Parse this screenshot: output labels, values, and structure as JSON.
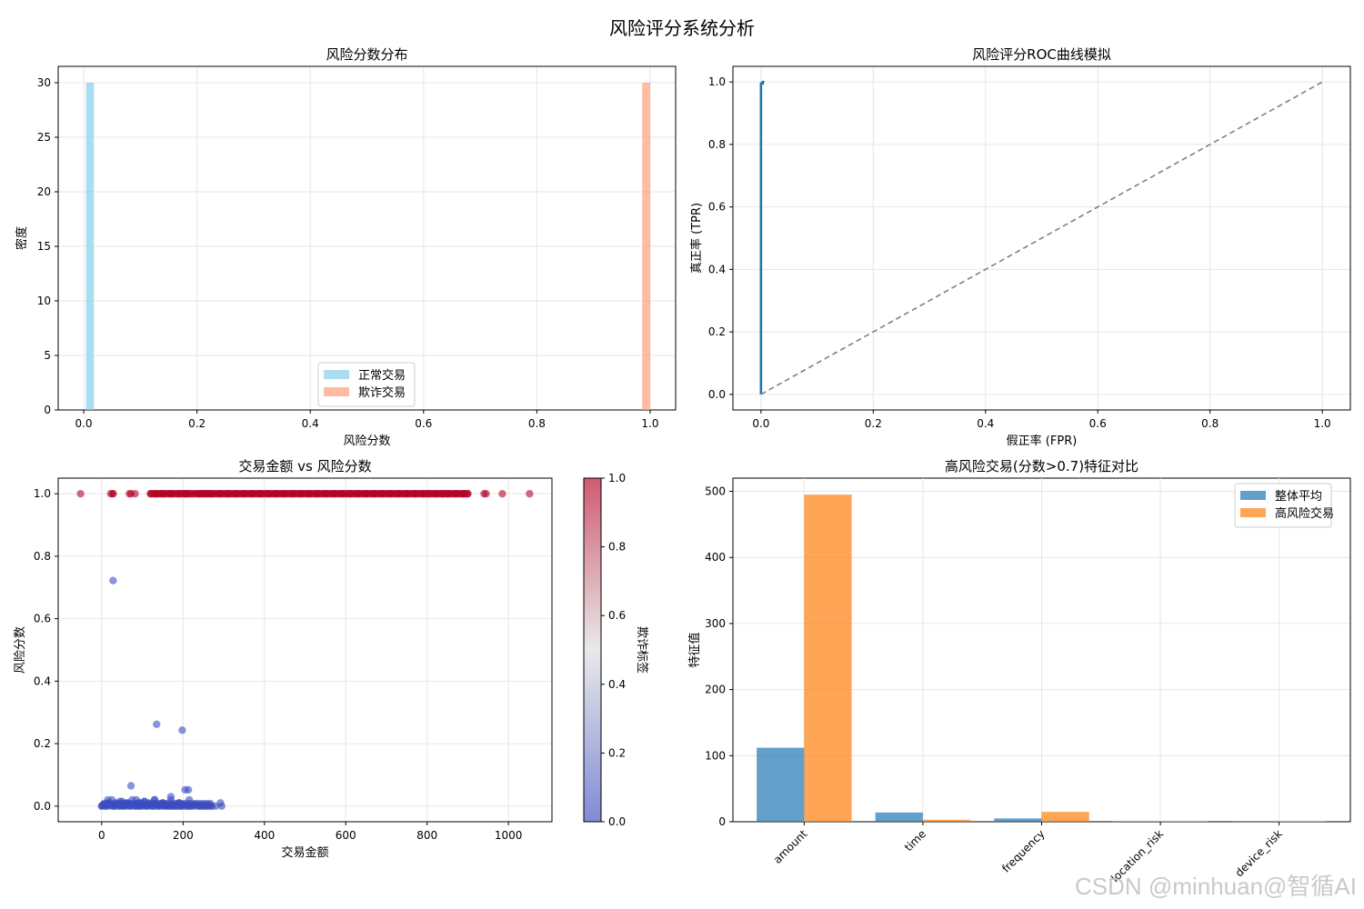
{
  "figure_title": "风险评分系统分析",
  "watermark": "CSDN @minhuan@智循AI",
  "colors": {
    "normal_hist": "#87CEEB",
    "fraud_hist": "#FFA07A",
    "roc_line": "#1f77b4",
    "diagonal": "#808080",
    "bar_overall": "#1f77b4",
    "bar_high_risk": "#ff7f0e",
    "cmap_low": "#3b4cc0",
    "cmap_mid": "#dddddd",
    "cmap_high": "#b40426",
    "grid": "#e6e6e6"
  },
  "chart_data": [
    {
      "id": "hist",
      "type": "bar",
      "title": "风险分数分布",
      "xlabel": "风险分数",
      "ylabel": "密度",
      "xlim": [
        -0.045,
        1.045
      ],
      "ylim": [
        0,
        31.5
      ],
      "xticks": [
        0.0,
        0.2,
        0.4,
        0.6,
        0.8,
        1.0
      ],
      "xtick_labels": [
        "0.0",
        "0.2",
        "0.4",
        "0.6",
        "0.8",
        "1.0"
      ],
      "yticks": [
        0,
        5,
        10,
        15,
        20,
        25,
        30
      ],
      "ytick_labels": [
        "0",
        "5",
        "10",
        "15",
        "20",
        "25",
        "30"
      ],
      "legend_position": "lower-center",
      "series": [
        {
          "name": "正常交易",
          "bins": [
            [
              0.004,
              0.018,
              30
            ]
          ]
        },
        {
          "name": "欺诈交易",
          "bins": [
            [
              0.986,
              1.0,
              30
            ]
          ]
        }
      ]
    },
    {
      "id": "roc",
      "type": "line",
      "title": "风险评分ROC曲线模拟",
      "xlabel": "假正率 (FPR)",
      "ylabel": "真正率 (TPR)",
      "xlim": [
        -0.05,
        1.05
      ],
      "ylim": [
        -0.05,
        1.05
      ],
      "xticks": [
        0.0,
        0.2,
        0.4,
        0.6,
        0.8,
        1.0
      ],
      "xtick_labels": [
        "0.0",
        "0.2",
        "0.4",
        "0.6",
        "0.8",
        "1.0"
      ],
      "yticks": [
        0.0,
        0.2,
        0.4,
        0.6,
        0.8,
        1.0
      ],
      "ytick_labels": [
        "0.0",
        "0.2",
        "0.4",
        "0.6",
        "0.8",
        "1.0"
      ],
      "series": [
        {
          "style": "solid",
          "x": [
            0.0,
            0.0,
            0.003,
            0.003,
            0.006
          ],
          "y": [
            0.0,
            0.995,
            0.995,
            1.0,
            1.0
          ]
        },
        {
          "style": "dashed",
          "x": [
            0.0,
            1.0
          ],
          "y": [
            0.0,
            1.0
          ]
        }
      ]
    },
    {
      "id": "scatter",
      "type": "scatter",
      "title": "交易金额 vs 风险分数",
      "xlabel": "交易金额",
      "ylabel": "风险分数",
      "xlim": [
        -107,
        1107
      ],
      "ylim": [
        -0.05,
        1.05
      ],
      "xticks": [
        0,
        200,
        400,
        600,
        800,
        1000
      ],
      "xtick_labels": [
        "0",
        "200",
        "400",
        "600",
        "800",
        "1000"
      ],
      "yticks": [
        0.0,
        0.2,
        0.4,
        0.6,
        0.8,
        1.0
      ],
      "ytick_labels": [
        "0.0",
        "0.2",
        "0.4",
        "0.6",
        "0.8",
        "1.0"
      ],
      "colorbar": {
        "label": "欺诈标签",
        "range": [
          0.0,
          1.0
        ],
        "ticks": [
          0.0,
          0.2,
          0.4,
          0.6,
          0.8,
          1.0
        ],
        "tick_labels": [
          "0.0",
          "0.2",
          "0.4",
          "0.6",
          "0.8",
          "1.0"
        ]
      },
      "fraud_points": {
        "label": 1.0,
        "x": [
          -52,
          22,
          27,
          28,
          68,
          72,
          82,
          120,
          135,
          150,
          170,
          190,
          205,
          210,
          240,
          250,
          260,
          270,
          290,
          310,
          330,
          350,
          370,
          390,
          410,
          430,
          450,
          470,
          490,
          510,
          530,
          550,
          570,
          590,
          610,
          630,
          650,
          670,
          690,
          710,
          730,
          750,
          770,
          790,
          805,
          820,
          838,
          850,
          870,
          890,
          900,
          940,
          945,
          985,
          1052
        ],
        "y": [
          1.0,
          1.0,
          1.0,
          1.0,
          1.0,
          1.0,
          1.0,
          1.0,
          1.0,
          1.0,
          1.0,
          1.0,
          1.0,
          1.0,
          1.0,
          1.0,
          1.0,
          1.0,
          1.0,
          1.0,
          1.0,
          1.0,
          1.0,
          1.0,
          1.0,
          1.0,
          1.0,
          1.0,
          1.0,
          1.0,
          1.0,
          1.0,
          1.0,
          1.0,
          1.0,
          1.0,
          1.0,
          1.0,
          1.0,
          1.0,
          1.0,
          1.0,
          1.0,
          1.0,
          1.0,
          1.0,
          1.0,
          1.0,
          1.0,
          1.0,
          1.0,
          1.0,
          1.0,
          1.0,
          1.0
        ]
      },
      "normal_points": {
        "label": 0.0,
        "x": [
          28,
          135,
          198,
          72,
          205,
          213,
          0,
          5,
          10,
          15,
          20,
          25,
          30,
          35,
          40,
          45,
          50,
          55,
          60,
          65,
          70,
          75,
          80,
          85,
          90,
          95,
          100,
          105,
          110,
          115,
          120,
          125,
          130,
          140,
          145,
          150,
          155,
          160,
          165,
          170,
          175,
          180,
          185,
          190,
          195,
          200,
          210,
          220,
          230,
          240,
          250,
          260,
          270,
          280,
          292,
          295,
          15,
          45,
          60,
          85,
          95,
          105,
          130,
          150,
          170,
          190,
          215
        ],
        "y": [
          0.722,
          0.262,
          0.243,
          0.065,
          0.052,
          0.052,
          0.0,
          0.005,
          0.0,
          0.01,
          0.005,
          0.02,
          0.0,
          0.01,
          0.005,
          0.0,
          0.015,
          0.0,
          0.005,
          0.01,
          0.0,
          0.02,
          0.005,
          0.0,
          0.01,
          0.0,
          0.005,
          0.015,
          0.0,
          0.01,
          0.005,
          0.0,
          0.02,
          0.0,
          0.005,
          0.01,
          0.0,
          0.005,
          0.0,
          0.03,
          0.0,
          0.005,
          0.0,
          0.01,
          0.0,
          0.005,
          0.0,
          0.0,
          0.005,
          0.0,
          0.0,
          0.0,
          0.0,
          0.0,
          0.01,
          0.0,
          0.02,
          0.015,
          0.01,
          0.02,
          0.01,
          0.015,
          0.02,
          0.01,
          0.02,
          0.01,
          0.02
        ]
      }
    },
    {
      "id": "features",
      "type": "bar",
      "title": "高风险交易(分数>0.7)特征对比",
      "xlabel": "",
      "ylabel": "特征值",
      "ylim": [
        0,
        520
      ],
      "yticks": [
        0,
        100,
        200,
        300,
        400,
        500
      ],
      "ytick_labels": [
        "0",
        "100",
        "200",
        "300",
        "400",
        "500"
      ],
      "legend_position": "top-right",
      "categories": [
        "amount",
        "time",
        "frequency",
        "location_risk",
        "device_risk"
      ],
      "series": [
        {
          "name": "整体平均",
          "values": [
            112,
            14,
            5,
            0.6,
            0.5
          ]
        },
        {
          "name": "高风险交易",
          "values": [
            495,
            3,
            15,
            0.9,
            0.9
          ]
        }
      ]
    }
  ]
}
